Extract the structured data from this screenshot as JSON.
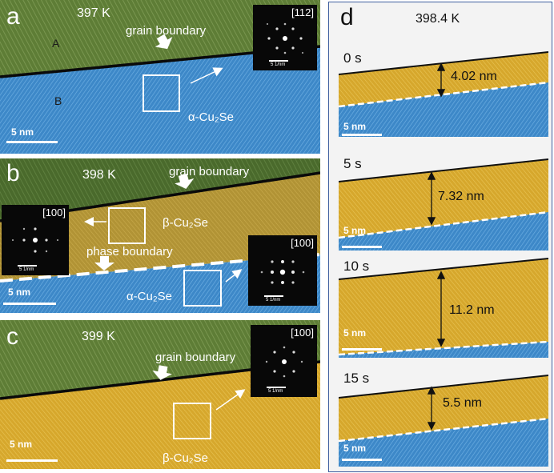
{
  "panels": {
    "a": {
      "letter": "a",
      "temp": "397 K",
      "grain_boundary": "grain boundary",
      "grain_a": "A",
      "grain_b": "B",
      "phase": "α-Cu₂Se",
      "scale": "5 nm",
      "inset_zone": "[112]",
      "inset_scale": "5 1/nm"
    },
    "b": {
      "letter": "b",
      "temp": "398 K",
      "grain_boundary": "grain boundary",
      "phase_beta": "β-Cu₂Se",
      "phase_alpha": "α-Cu₂Se",
      "phase_boundary": "phase boundary",
      "scale": "5 nm",
      "inset_left_zone": "[100]",
      "inset_left_scale": "5 1/nm",
      "inset_right_zone": "[100]",
      "inset_right_scale": "5 1/nm"
    },
    "c": {
      "letter": "c",
      "temp": "399 K",
      "grain_boundary": "grain boundary",
      "phase": "β-Cu₂Se",
      "scale": "5 nm",
      "inset_zone": "[100]",
      "inset_scale": "5 1/nm"
    },
    "d": {
      "letter": "d",
      "temp": "398.4 K",
      "frames": [
        {
          "time": "0 s",
          "thickness": "4.02 nm",
          "scale": "5 nm"
        },
        {
          "time": "5 s",
          "thickness": "7.32 nm",
          "scale": "5 nm"
        },
        {
          "time": "10 s",
          "thickness": "11.2 nm",
          "scale": "5 nm"
        },
        {
          "time": "15 s",
          "thickness": "5.5 nm",
          "scale": "5 nm"
        }
      ]
    }
  },
  "colors": {
    "green": "#5e7d36",
    "blue": "#3d88c8",
    "gold": "#d6a72c"
  }
}
